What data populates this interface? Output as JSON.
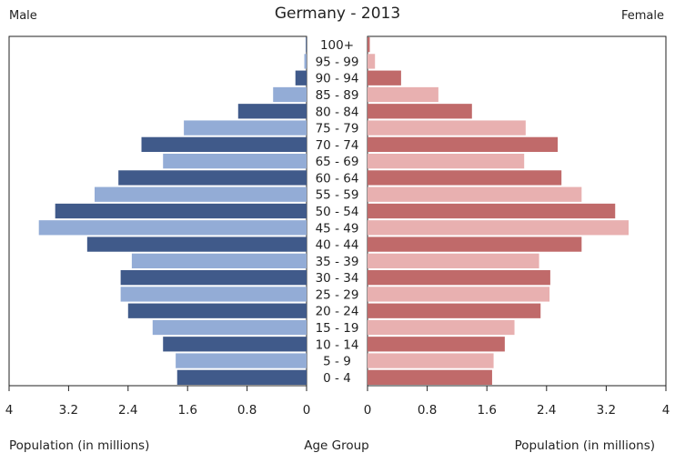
{
  "chart_data": {
    "type": "bar",
    "title": "Germany - 2013",
    "left_label": "Male",
    "right_label": "Female",
    "xlabel_left": "Population (in millions)",
    "xlabel_center": "Age Group",
    "xlabel_right": "Population (in millions)",
    "xlim": [
      0,
      4
    ],
    "ticks": [
      4,
      3.2,
      2.4,
      1.6,
      0.8,
      0
    ],
    "tick_labels_left": [
      "4",
      "3.2",
      "2.4",
      "1.6",
      "0.8",
      "0"
    ],
    "tick_labels_right": [
      "0",
      "0.8",
      "1.6",
      "2.4",
      "3.2",
      "4"
    ],
    "categories": [
      "100+",
      "95 - 99",
      "90 - 94",
      "85 - 89",
      "80 - 84",
      "75 - 79",
      "70 - 74",
      "65 - 69",
      "60 - 64",
      "55 - 59",
      "50 - 54",
      "45 - 49",
      "40 - 44",
      "35 - 39",
      "30 - 34",
      "25 - 29",
      "20 - 24",
      "15 - 19",
      "10 - 14",
      "5 - 9",
      "0 - 4"
    ],
    "series": [
      {
        "name": "Male",
        "values": [
          0.01,
          0.03,
          0.15,
          0.45,
          0.92,
          1.65,
          2.22,
          1.93,
          2.53,
          2.85,
          3.38,
          3.6,
          2.95,
          2.35,
          2.5,
          2.5,
          2.4,
          2.07,
          1.93,
          1.76,
          1.74
        ],
        "colors": [
          "#405a8a",
          "#93acd6"
        ]
      },
      {
        "name": "Female",
        "values": [
          0.03,
          0.1,
          0.45,
          0.95,
          1.4,
          2.12,
          2.55,
          2.1,
          2.6,
          2.87,
          3.32,
          3.5,
          2.87,
          2.3,
          2.45,
          2.44,
          2.32,
          1.97,
          1.84,
          1.69,
          1.67
        ],
        "colors": [
          "#c06a6a",
          "#e8b0b0"
        ]
      }
    ],
    "grid": false
  }
}
